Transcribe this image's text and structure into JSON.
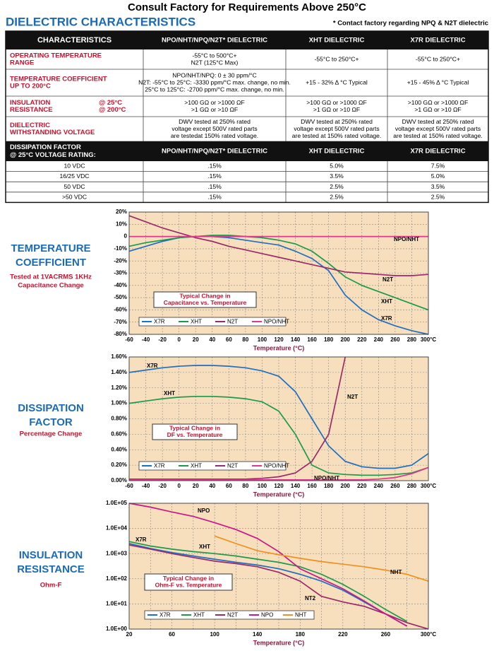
{
  "header": {
    "title": "Consult Factory for Requirements Above 250°C",
    "section": "DIELECTRIC CHARACTERISTICS",
    "note": "* Contact factory regarding NPQ & N2T dielectric"
  },
  "table": {
    "columns": [
      "CHARACTERISTICS",
      "NPO/NHT/NPQ/N2T* DIELECTRIC",
      "XHT DIELECTRIC",
      "X7R DIELECTRIC"
    ],
    "rows": [
      {
        "label": [
          "OPERATING TEMPERATURE",
          "RANGE"
        ],
        "cells": [
          [
            "-55°C to 500°C+",
            "N2T (125°C Max)"
          ],
          [
            "-55°C to 250°C+"
          ],
          [
            "-55°C to 250°C+"
          ]
        ]
      },
      {
        "label": [
          "TEMPERATURE COEFFICIENT",
          "UP TO 200°C"
        ],
        "cells": [
          [
            "NPO/NHT/NPQ: 0 ± 30 ppm/°C",
            "N2T: -55°C to 25°C: -3330 ppm/°C max. change, no min.",
            "25°C to 125°C: -2700 ppm/°C max. change, no min."
          ],
          [
            "+15 - 32% Δ °C Typical"
          ],
          [
            "+15 - 45% Δ °C Typical"
          ]
        ]
      },
      {
        "label": [
          "INSULATION",
          "RESISTANCE"
        ],
        "label_right": [
          "@ 25°C",
          "@ 200°C"
        ],
        "cells": [
          [
            ">100 GΩ or >1000 ΩF",
            ">1 GΩ or >10 ΩF"
          ],
          [
            ">100 GΩ or >1000 ΩF",
            ">1 GΩ or >10 ΩF"
          ],
          [
            ">100 GΩ or >1000 ΩF",
            ">1 GΩ or >10 ΩF"
          ]
        ]
      },
      {
        "label": [
          "DIELECTRIC",
          "WITHSTANDING VOLTAGE"
        ],
        "cells": [
          [
            "DWV tested at 250% rated",
            "voltage except 500V rated parts",
            "are testedat 150% rated voltage."
          ],
          [
            "DWV tested at 250% rated",
            "voltage except 500V rated parts",
            "are tested at 150% rated voltage."
          ],
          [
            "DWV tested at 250% rated",
            "voltage except 500V rated parts",
            "are tested at 150% rated voltage."
          ]
        ]
      }
    ],
    "df_header": {
      "label": [
        "DISSIPATION FACTOR",
        "@ 25°C VOLTAGE RATING:"
      ],
      "columns": [
        "NPO/NHT/NPQ/N2T* DIELECTRIC",
        "XHT DIELECTRIC",
        "X7R DIELECTRIC"
      ]
    },
    "df_rows": [
      [
        "10 VDC",
        ".15%",
        "5.0%",
        "7.5%"
      ],
      [
        "16/25 VDC",
        ".15%",
        "3.5%",
        "5.0%"
      ],
      [
        "50 VDC",
        ".15%",
        "2.5%",
        "3.5%"
      ],
      [
        ">50 VDC",
        ".15%",
        "2.5%",
        "2.5%"
      ]
    ]
  },
  "chart_data": [
    {
      "type": "line",
      "side_title": [
        "TEMPERATURE",
        "COEFFICIENT"
      ],
      "side_subtitle": [
        "Tested at 1VACRMS 1KHz",
        "Capacitance Change"
      ],
      "title": [
        "Typical Change in",
        "Capacitance vs. Temperature"
      ],
      "xlabel": "Temperature (°C)",
      "x": [
        -60,
        -40,
        -20,
        0,
        20,
        40,
        60,
        80,
        100,
        120,
        140,
        160,
        180,
        200,
        220,
        240,
        260,
        280,
        300
      ],
      "series": [
        {
          "name": "X7R",
          "color": "#1f6fc1",
          "values": [
            -12,
            -8,
            -4,
            -1,
            0,
            0,
            -1,
            -3,
            -5,
            -7,
            -12,
            -18,
            -28,
            -48,
            -60,
            -68,
            -73,
            -77,
            -80
          ]
        },
        {
          "name": "XHT",
          "color": "#1a9a4a",
          "values": [
            -8,
            -5,
            -3,
            -1,
            0,
            1,
            1,
            0,
            -1,
            -3,
            -6,
            -12,
            -22,
            -33,
            -40,
            -45,
            -50,
            -55,
            -60
          ]
        },
        {
          "name": "N2T",
          "color": "#9b2a6a",
          "values": [
            17,
            12,
            7,
            3,
            -1,
            -4,
            -8,
            -11,
            -14,
            -17,
            -20,
            -23,
            -26,
            -29,
            -30,
            -31,
            -32,
            -32,
            -31
          ]
        },
        {
          "name": "NPO/NHT",
          "color": "#e0368e",
          "values": [
            0,
            0,
            0,
            0,
            0,
            0,
            0,
            0,
            0,
            0,
            0,
            0,
            0,
            0,
            0,
            0,
            0,
            0,
            0
          ]
        }
      ],
      "annotations": [
        "NPO/NHT",
        "N2T",
        "XHT",
        "X7R"
      ],
      "xlim": [
        -60,
        300
      ],
      "xticks": [
        -60,
        -40,
        -20,
        0,
        20,
        40,
        60,
        80,
        100,
        120,
        140,
        160,
        180,
        200,
        220,
        240,
        260,
        280,
        {
          "value": 300,
          "label": "300°C"
        }
      ],
      "ylim": [
        -80,
        20
      ],
      "yticks": [
        {
          "value": 20,
          "label": "20%"
        },
        {
          "value": 10,
          "label": "10%"
        },
        0,
        {
          "value": -10,
          "label": "-10%"
        },
        {
          "value": -20,
          "label": "-20%"
        },
        {
          "value": -30,
          "label": "-30%"
        },
        {
          "value": -40,
          "label": "-40%"
        },
        {
          "value": -50,
          "label": "-50%"
        },
        {
          "value": -60,
          "label": "-60%"
        },
        {
          "value": -70,
          "label": "-70%"
        },
        {
          "value": -80,
          "label": "-80%"
        }
      ],
      "grid": true,
      "log_y": false
    },
    {
      "type": "line",
      "side_title": [
        "DISSIPATION",
        "FACTOR"
      ],
      "side_subtitle": [
        "Percentage Change"
      ],
      "title": [
        "Typical Change in",
        "DF vs. Temperature"
      ],
      "xlabel": "Temperature (°C)",
      "x": [
        -60,
        -40,
        -20,
        0,
        20,
        40,
        60,
        80,
        100,
        120,
        140,
        160,
        180,
        200,
        220,
        240,
        260,
        280,
        300
      ],
      "series": [
        {
          "name": "X7R",
          "color": "#1f6fc1",
          "values": [
            1.4,
            1.43,
            1.46,
            1.48,
            1.49,
            1.49,
            1.48,
            1.46,
            1.42,
            1.35,
            1.15,
            0.8,
            0.45,
            0.25,
            0.18,
            0.16,
            0.16,
            0.2,
            0.35
          ]
        },
        {
          "name": "XHT",
          "color": "#1a9a4a",
          "values": [
            1.0,
            1.03,
            1.06,
            1.08,
            1.09,
            1.09,
            1.08,
            1.06,
            1.02,
            0.9,
            0.6,
            0.2,
            0.1,
            0.08,
            0.07,
            0.07,
            0.08,
            0.1,
            0.17
          ]
        },
        {
          "name": "N2T",
          "color": "#9b2a6a",
          "values": [
            0.02,
            0.02,
            0.02,
            0.02,
            0.02,
            0.02,
            0.02,
            0.02,
            0.03,
            0.05,
            0.1,
            0.25,
            0.6,
            1.6,
            null,
            null,
            null,
            null,
            null
          ]
        },
        {
          "name": "NPO/NHT",
          "color": "#e0368e",
          "values": [
            0.01,
            0.01,
            0.01,
            0.01,
            0.01,
            0.01,
            0.01,
            0.01,
            0.01,
            0.01,
            0.01,
            0.01,
            0.01,
            0.01,
            0.01,
            0.02,
            0.04,
            0.09,
            0.17
          ]
        }
      ],
      "annotations": [
        "X7R",
        "XHT",
        "N2T",
        "NPO/NHT"
      ],
      "xlim": [
        -60,
        300
      ],
      "xticks": [
        -60,
        -40,
        -20,
        0,
        20,
        40,
        60,
        80,
        100,
        120,
        140,
        160,
        180,
        200,
        220,
        240,
        260,
        280,
        {
          "value": 300,
          "label": "300°C"
        }
      ],
      "ylim": [
        0,
        1.6
      ],
      "yticks": [
        {
          "value": 1.6,
          "label": "1.60%"
        },
        {
          "value": 1.4,
          "label": "1.40%"
        },
        {
          "value": 1.2,
          "label": "1.20%"
        },
        {
          "value": 1.0,
          "label": "1.00%"
        },
        {
          "value": 0.8,
          "label": "0.80%"
        },
        {
          "value": 0.6,
          "label": "0.60%"
        },
        {
          "value": 0.4,
          "label": "0.40%"
        },
        {
          "value": 0.2,
          "label": "0.20%"
        },
        {
          "value": 0,
          "label": "0.00%"
        }
      ],
      "grid": true,
      "log_y": false
    },
    {
      "type": "line",
      "side_title": [
        "INSULATION",
        "RESISTANCE"
      ],
      "side_subtitle": [
        "Ohm-F"
      ],
      "title": [
        "Typical Change in",
        "Ohm-F vs. Temperature"
      ],
      "xlabel": "Temperature (°C)",
      "x": [
        20,
        40,
        60,
        80,
        100,
        120,
        140,
        160,
        180,
        200,
        220,
        240,
        260,
        280,
        300
      ],
      "series": [
        {
          "name": "X7R",
          "color": "#1f6fc1",
          "values": [
            2500,
            1600,
            1100,
            800,
            600,
            450,
            350,
            250,
            150,
            80,
            35,
            12,
            4,
            1.3,
            null
          ]
        },
        {
          "name": "XHT",
          "color": "#1a9a4a",
          "values": [
            3000,
            2000,
            1500,
            1200,
            1000,
            800,
            600,
            450,
            300,
            150,
            60,
            20,
            6,
            2,
            null
          ]
        },
        {
          "name": "N2T",
          "color": "#9b2a6a",
          "values": [
            2200,
            1500,
            1000,
            700,
            500,
            400,
            300,
            180,
            80,
            20,
            12,
            8,
            4,
            1.8,
            1
          ]
        },
        {
          "name": "NPO",
          "color": "#c8188a",
          "values": [
            100000,
            70000,
            45000,
            30000,
            17000,
            9000,
            4000,
            1200,
            250,
            100,
            40,
            13,
            4,
            1.3,
            null
          ]
        },
        {
          "name": "NHT",
          "color": "#f0901e",
          "values": [
            null,
            null,
            null,
            null,
            5000,
            2500,
            1300,
            900,
            650,
            480,
            380,
            300,
            220,
            150,
            80
          ]
        }
      ],
      "annotations": [
        "X7R",
        "XHT",
        "NPO",
        "NHT",
        "NT2"
      ],
      "xlim": [
        20,
        300
      ],
      "xticks": [
        20,
        60,
        100,
        140,
        180,
        220,
        260,
        {
          "value": 300,
          "label": "300°C"
        }
      ],
      "ylim": [
        1,
        100000
      ],
      "yticks": [
        {
          "value": 100000,
          "label": "1.0E+05"
        },
        {
          "value": 10000,
          "label": "1.0E+04"
        },
        {
          "value": 1000,
          "label": "1.0E+03"
        },
        {
          "value": 100,
          "label": "1.0E+02"
        },
        {
          "value": 10,
          "label": "1.0E+01"
        },
        {
          "value": 1,
          "label": "1.0E+00"
        }
      ],
      "grid": true,
      "minor_x_grid": true,
      "log_y": true
    }
  ]
}
